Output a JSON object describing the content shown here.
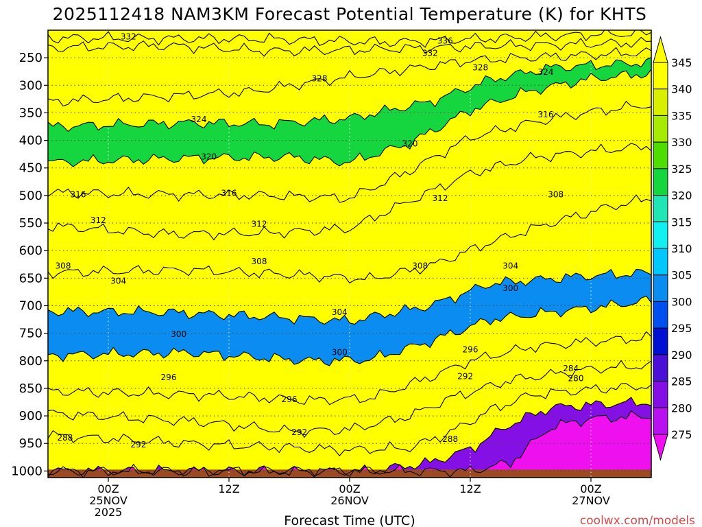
{
  "chart_data": {
    "type": "heatmap",
    "title": "2025112418 NAM3KM Forecast Potential Temperature (K) for KHTS",
    "xlabel": "Forecast Time (UTC)",
    "ylabel": "",
    "credit": "coolwx.com/models",
    "y_axis": {
      "unit": "hPa",
      "ticks": [
        "250",
        "300",
        "350",
        "400",
        "450",
        "500",
        "550",
        "600",
        "650",
        "700",
        "750",
        "800",
        "850",
        "900",
        "950",
        "1000"
      ],
      "values": [
        250,
        300,
        350,
        400,
        450,
        500,
        550,
        600,
        650,
        700,
        750,
        800,
        850,
        900,
        950,
        1000
      ],
      "range": [
        200,
        1012
      ]
    },
    "x_axis": {
      "range_hours": [
        -6,
        54
      ],
      "ticks": [
        {
          "hour": 0,
          "line1": "00Z",
          "line2": "25NOV",
          "line3": "2025"
        },
        {
          "hour": 12,
          "line1": "12Z",
          "line2": "",
          "line3": ""
        },
        {
          "hour": 24,
          "line1": "00Z",
          "line2": "26NOV",
          "line3": ""
        },
        {
          "hour": 36,
          "line1": "12Z",
          "line2": "",
          "line3": ""
        },
        {
          "hour": 48,
          "line1": "00Z",
          "line2": "27NOV",
          "line3": ""
        }
      ]
    },
    "colorbar": {
      "levels": [
        "345",
        "340",
        "335",
        "330",
        "325",
        "320",
        "315",
        "310",
        "305",
        "300",
        "295",
        "290",
        "285",
        "280",
        "275"
      ],
      "colors": [
        "#ffff00",
        "#d8f000",
        "#a6ea00",
        "#4fdc00",
        "#16d640",
        "#1fe6b4",
        "#10f0f0",
        "#00c8ff",
        "#0a8cf0",
        "#0050f0",
        "#0010d0",
        "#4a10d8",
        "#8410e6",
        "#b810f0",
        "#ee10ee"
      ]
    },
    "contour_lines": [
      {
        "level": 280,
        "label": "280",
        "profile": [
          [
            -6,
            1000
          ],
          [
            32,
            1000
          ],
          [
            36,
            1000
          ],
          [
            40,
            985
          ],
          [
            44,
            920
          ],
          [
            48,
            905
          ],
          [
            54,
            900
          ]
        ]
      },
      {
        "level": 284,
        "label": "284",
        "profile": [
          [
            -6,
            1000
          ],
          [
            26,
            1000
          ],
          [
            32,
            985
          ],
          [
            36,
            960
          ],
          [
            40,
            915
          ],
          [
            44,
            885
          ],
          [
            48,
            880
          ],
          [
            54,
            875
          ]
        ]
      },
      {
        "level": 288,
        "label": "288",
        "profile": [
          [
            -6,
            935
          ],
          [
            10,
            952
          ],
          [
            24,
            962
          ],
          [
            30,
            958
          ],
          [
            34,
            930
          ],
          [
            38,
            890
          ],
          [
            42,
            862
          ],
          [
            48,
            852
          ],
          [
            54,
            845
          ]
        ]
      },
      {
        "level": 292,
        "label": "292",
        "profile": [
          [
            -6,
            895
          ],
          [
            10,
            912
          ],
          [
            18,
            928
          ],
          [
            24,
            925
          ],
          [
            30,
            900
          ],
          [
            34,
            868
          ],
          [
            40,
            835
          ],
          [
            48,
            815
          ],
          [
            54,
            808
          ]
        ]
      },
      {
        "level": 296,
        "label": "296",
        "profile": [
          [
            -6,
            855
          ],
          [
            10,
            862
          ],
          [
            20,
            872
          ],
          [
            26,
            868
          ],
          [
            32,
            830
          ],
          [
            36,
            800
          ],
          [
            42,
            775
          ],
          [
            48,
            765
          ],
          [
            54,
            758
          ]
        ]
      },
      {
        "level": 300,
        "label": "300",
        "profile": [
          [
            -6,
            790
          ],
          [
            8,
            785
          ],
          [
            20,
            800
          ],
          [
            26,
            798
          ],
          [
            32,
            765
          ],
          [
            38,
            725
          ],
          [
            44,
            712
          ],
          [
            50,
            700
          ],
          [
            54,
            690
          ]
        ]
      },
      {
        "level": 304,
        "label": "304",
        "profile": [
          [
            -6,
            710
          ],
          [
            6,
            712
          ],
          [
            18,
            722
          ],
          [
            24,
            728
          ],
          [
            32,
            700
          ],
          [
            38,
            660
          ],
          [
            46,
            648
          ],
          [
            54,
            640
          ]
        ]
      },
      {
        "level": 308,
        "label": "308",
        "profile": [
          [
            -6,
            640
          ],
          [
            8,
            635
          ],
          [
            20,
            645
          ],
          [
            26,
            652
          ],
          [
            32,
            628
          ],
          [
            38,
            585
          ],
          [
            44,
            550
          ],
          [
            50,
            520
          ],
          [
            54,
            505
          ]
        ]
      },
      {
        "level": 312,
        "label": "312",
        "profile": [
          [
            -6,
            555
          ],
          [
            6,
            570
          ],
          [
            16,
            568
          ],
          [
            24,
            560
          ],
          [
            30,
            510
          ],
          [
            36,
            460
          ],
          [
            42,
            432
          ],
          [
            48,
            420
          ],
          [
            54,
            410
          ]
        ]
      },
      {
        "level": 316,
        "label": "316",
        "profile": [
          [
            -6,
            495
          ],
          [
            6,
            498
          ],
          [
            16,
            500
          ],
          [
            24,
            505
          ],
          [
            30,
            455
          ],
          [
            36,
            395
          ],
          [
            42,
            368
          ],
          [
            48,
            348
          ],
          [
            54,
            335
          ]
        ]
      },
      {
        "level": 320,
        "label": "320",
        "profile": [
          [
            -6,
            440
          ],
          [
            8,
            432
          ],
          [
            18,
            430
          ],
          [
            24,
            440
          ],
          [
            30,
            405
          ],
          [
            36,
            345
          ],
          [
            42,
            310
          ],
          [
            48,
            288
          ],
          [
            54,
            278
          ]
        ]
      },
      {
        "level": 324,
        "label": "324",
        "profile": [
          [
            -6,
            375
          ],
          [
            8,
            368
          ],
          [
            16,
            370
          ],
          [
            24,
            360
          ],
          [
            32,
            330
          ],
          [
            38,
            290
          ],
          [
            44,
            268
          ],
          [
            54,
            258
          ]
        ]
      },
      {
        "level": 328,
        "label": "328",
        "profile": [
          [
            -6,
            330
          ],
          [
            6,
            320
          ],
          [
            14,
            312
          ],
          [
            20,
            295
          ],
          [
            28,
            275
          ],
          [
            36,
            255
          ],
          [
            44,
            248
          ],
          [
            54,
            240
          ]
        ]
      },
      {
        "level": 332,
        "label": "332",
        "profile": [
          [
            -6,
            232
          ],
          [
            6,
            228
          ],
          [
            16,
            238
          ],
          [
            24,
            236
          ],
          [
            32,
            232
          ],
          [
            40,
            228
          ],
          [
            48,
            225
          ],
          [
            54,
            222
          ]
        ]
      },
      {
        "level": 336,
        "label": "336",
        "profile": [
          [
            -6,
            214
          ],
          [
            16,
            216
          ],
          [
            28,
            222
          ],
          [
            34,
            218
          ],
          [
            42,
            212
          ],
          [
            48,
            208
          ],
          [
            54,
            206
          ]
        ]
      }
    ],
    "contour_labels": [
      {
        "text": "332",
        "hour": 2,
        "hPa": 212
      },
      {
        "text": "336",
        "hour": 33.5,
        "hPa": 219
      },
      {
        "text": "332",
        "hour": 32,
        "hPa": 242
      },
      {
        "text": "328",
        "hour": 37,
        "hPa": 268
      },
      {
        "text": "324",
        "hour": 43.5,
        "hPa": 276
      },
      {
        "text": "328",
        "hour": 21,
        "hPa": 288
      },
      {
        "text": "324",
        "hour": 9,
        "hPa": 362
      },
      {
        "text": "316",
        "hour": 43.5,
        "hPa": 353
      },
      {
        "text": "320",
        "hour": 30,
        "hPa": 406
      },
      {
        "text": "320",
        "hour": 10,
        "hPa": 430
      },
      {
        "text": "316",
        "hour": -3,
        "hPa": 498
      },
      {
        "text": "316",
        "hour": 12,
        "hPa": 496
      },
      {
        "text": "312",
        "hour": 33,
        "hPa": 505
      },
      {
        "text": "308",
        "hour": 44.5,
        "hPa": 498
      },
      {
        "text": "312",
        "hour": -1,
        "hPa": 545
      },
      {
        "text": "312",
        "hour": 15,
        "hPa": 552
      },
      {
        "text": "308",
        "hour": -4.5,
        "hPa": 628
      },
      {
        "text": "308",
        "hour": 15,
        "hPa": 620
      },
      {
        "text": "308",
        "hour": 31,
        "hPa": 628
      },
      {
        "text": "304",
        "hour": 40,
        "hPa": 628
      },
      {
        "text": "304",
        "hour": 1,
        "hPa": 655
      },
      {
        "text": "300",
        "hour": 40,
        "hPa": 668
      },
      {
        "text": "304",
        "hour": 23,
        "hPa": 712
      },
      {
        "text": "300",
        "hour": 7,
        "hPa": 752
      },
      {
        "text": "300",
        "hour": 23,
        "hPa": 785
      },
      {
        "text": "296",
        "hour": 36,
        "hPa": 780
      },
      {
        "text": "296",
        "hour": 6,
        "hPa": 830
      },
      {
        "text": "292",
        "hour": 35.5,
        "hPa": 828
      },
      {
        "text": "284",
        "hour": 46,
        "hPa": 814
      },
      {
        "text": "280",
        "hour": 46.5,
        "hPa": 832
      },
      {
        "text": "296",
        "hour": 18,
        "hPa": 870
      },
      {
        "text": "292",
        "hour": 19,
        "hPa": 930
      },
      {
        "text": "288",
        "hour": -4.3,
        "hPa": 940
      },
      {
        "text": "292",
        "hour": 3,
        "hPa": 952
      },
      {
        "text": "288",
        "hour": 34,
        "hPa": 942
      }
    ]
  }
}
